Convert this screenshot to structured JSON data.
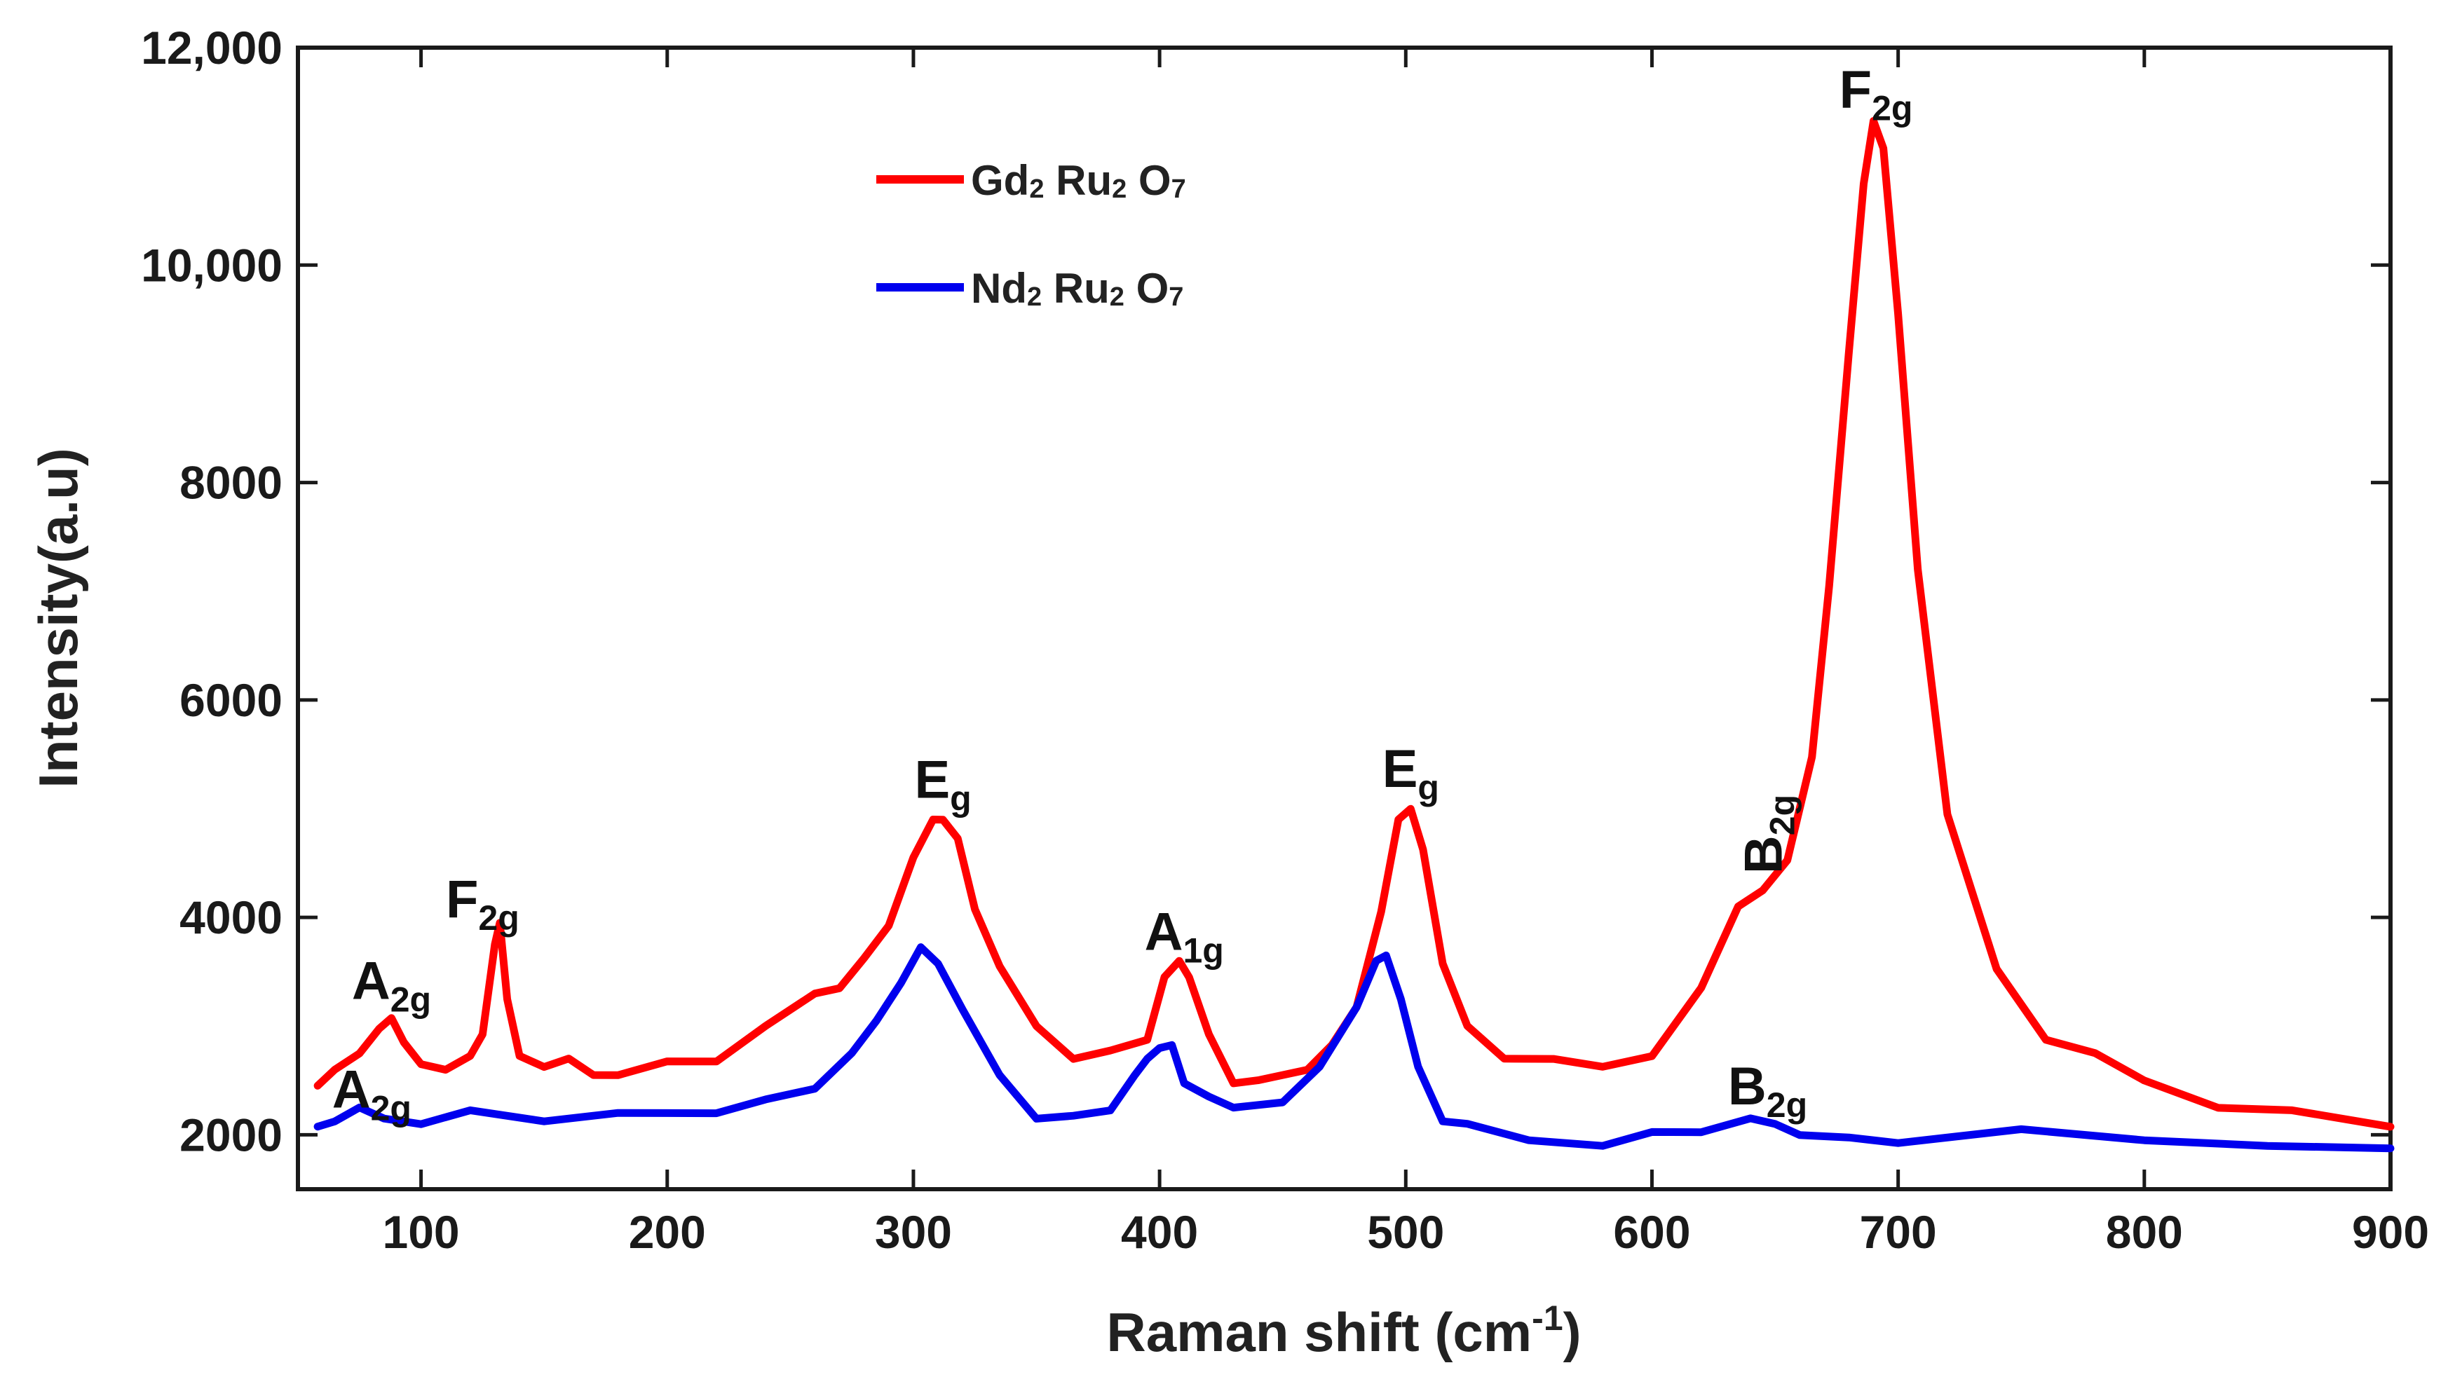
{
  "chart_data": {
    "type": "line",
    "title": "",
    "xlabel": "Raman shift (cm",
    "xlabel_sup": "-1",
    "xlabel_close": ")",
    "ylabel": "Intensity(a.u)",
    "xlim": [
      50,
      900
    ],
    "ylim": [
      1500,
      12000
    ],
    "xticks": [
      100,
      200,
      300,
      400,
      500,
      600,
      700,
      800,
      900
    ],
    "xtick_labels": [
      "100",
      "200",
      "300",
      "400",
      "500",
      "600",
      "700",
      "800",
      "900"
    ],
    "yticks": [
      2000,
      4000,
      6000,
      8000,
      10000,
      12000
    ],
    "ytick_labels": [
      "2000",
      "4000",
      "6000",
      "8000",
      "10,000",
      "12,000"
    ],
    "grid": false,
    "legend_position": "top-left",
    "series": [
      {
        "name": "Gd2Ru2O7",
        "legend": {
          "p1": "Gd",
          "s1": "2",
          "p2": " Ru",
          "s2": "2",
          "p3": " O",
          "s3": "7"
        },
        "color": "#ff0000",
        "x": [
          58,
          65,
          75,
          83,
          88,
          93,
          100,
          110,
          120,
          125,
          130,
          132,
          135,
          140,
          150,
          160,
          170,
          180,
          200,
          220,
          240,
          260,
          270,
          280,
          290,
          300,
          308,
          312,
          318,
          325,
          335,
          350,
          365,
          380,
          395,
          402,
          408,
          412,
          420,
          430,
          440,
          450,
          460,
          470,
          480,
          490,
          497,
          502,
          507,
          515,
          525,
          540,
          560,
          580,
          600,
          620,
          635,
          645,
          655,
          665,
          672,
          680,
          686,
          690,
          694,
          700,
          708,
          720,
          740,
          760,
          780,
          800,
          830,
          860,
          900
        ],
        "values": [
          2400,
          2600,
          2800,
          2950,
          3100,
          2800,
          2650,
          2650,
          2700,
          2950,
          3700,
          3950,
          3300,
          2700,
          2650,
          2650,
          2550,
          2600,
          2650,
          2700,
          2950,
          3300,
          3400,
          3600,
          3950,
          4500,
          4900,
          4950,
          4700,
          4100,
          3500,
          3000,
          2750,
          2750,
          2900,
          3400,
          3600,
          3500,
          2900,
          2500,
          2450,
          2550,
          2650,
          2800,
          3200,
          4000,
          4900,
          5050,
          4600,
          3600,
          2950,
          2700,
          2750,
          2600,
          2750,
          3300,
          4100,
          4300,
          4500,
          5500,
          7000,
          9200,
          10800,
          11300,
          11100,
          9500,
          7200,
          5000,
          3500,
          2900,
          2700,
          2500,
          2300,
          2200,
          2100
        ]
      },
      {
        "name": "Nd2Ru2O7",
        "legend": {
          "p1": "Nd",
          "s1": "2",
          "p2": " Ru",
          "s2": "2",
          "p3": " O",
          "s3": "7"
        },
        "color": "#0000ee",
        "x": [
          58,
          65,
          75,
          85,
          100,
          120,
          150,
          180,
          200,
          220,
          240,
          260,
          275,
          285,
          295,
          303,
          310,
          320,
          335,
          350,
          365,
          380,
          390,
          395,
          400,
          405,
          410,
          420,
          430,
          450,
          465,
          480,
          488,
          492,
          498,
          505,
          515,
          525,
          550,
          580,
          600,
          620,
          640,
          650,
          660,
          680,
          700,
          750,
          800,
          850,
          900
        ],
        "values": [
          2050,
          2150,
          2200,
          2150,
          2150,
          2200,
          2150,
          2150,
          2200,
          2250,
          2300,
          2450,
          2700,
          3050,
          3450,
          3700,
          3600,
          3100,
          2550,
          2200,
          2150,
          2250,
          2500,
          2700,
          2850,
          2800,
          2500,
          2300,
          2250,
          2350,
          2600,
          3200,
          3550,
          3650,
          3300,
          2600,
          2150,
          2050,
          1950,
          1950,
          2000,
          2050,
          2100,
          2100,
          2050,
          1950,
          1950,
          2000,
          1950,
          1950,
          1850
        ]
      }
    ],
    "annotations": [
      {
        "main": "A",
        "sub": "2g",
        "x": 88,
        "y": 3250
      },
      {
        "main": "F",
        "sub": "2g",
        "x": 125,
        "y": 4000
      },
      {
        "main": "A",
        "sub": "2g",
        "x": 80,
        "y": 2250
      },
      {
        "main": "E",
        "sub": "g",
        "x": 312,
        "y": 5100
      },
      {
        "main": "A",
        "sub": "1g",
        "x": 410,
        "y": 3700
      },
      {
        "main": "E",
        "sub": "g",
        "x": 502,
        "y": 5200
      },
      {
        "main": "B",
        "sub": "2g",
        "x": 647,
        "y": 4400,
        "vertical": true
      },
      {
        "main": "B",
        "sub": "2g",
        "x": 647,
        "y": 2280
      },
      {
        "main": "F",
        "sub": "2g",
        "x": 691,
        "y": 11450
      }
    ]
  }
}
